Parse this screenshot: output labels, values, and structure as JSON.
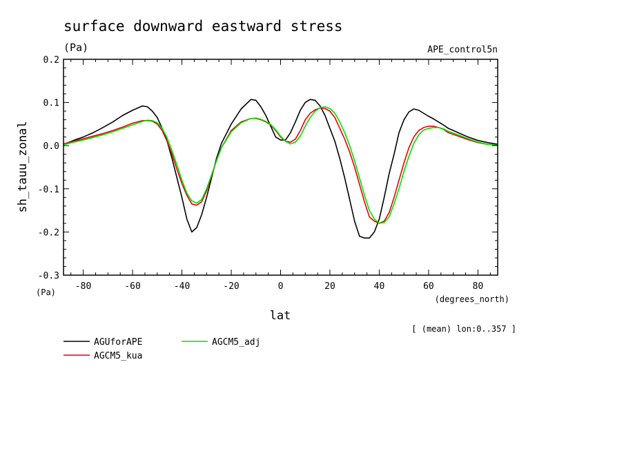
{
  "chart_data": {
    "type": "line",
    "title": "surface downward eastward stress",
    "subtitle_left": "(Pa)",
    "subtitle_right": "APE_control5n",
    "ylabel": "sh_tauu_zonal",
    "yunit": "(Pa)",
    "xlabel": "lat",
    "xunit": "(degrees_north)",
    "annotation": "[ (mean) lon:0..357 ]",
    "xlim": [
      -88,
      88
    ],
    "ylim": [
      -0.3,
      0.2
    ],
    "xticks": [
      -80,
      -60,
      -40,
      -20,
      0,
      20,
      40,
      60,
      80
    ],
    "xticklabels": [
      "-80",
      "-60",
      "-40",
      "-20",
      "0",
      "20",
      "40",
      "60",
      "80"
    ],
    "yticks": [
      -0.3,
      -0.2,
      -0.1,
      0.0,
      0.1,
      0.2
    ],
    "yticklabels": [
      "-0.3",
      "-0.2",
      "-0.1",
      "0.0",
      "0.1",
      "0.2"
    ],
    "legend_position": "bottom-left",
    "series": [
      {
        "name": "AGUforAPE",
        "color": "#000000",
        "x": [
          -88,
          -84,
          -80,
          -76,
          -72,
          -68,
          -64,
          -60,
          -56,
          -54,
          -52,
          -50,
          -48,
          -46,
          -44,
          -42,
          -40,
          -38,
          -36,
          -34,
          -32,
          -30,
          -28,
          -26,
          -24,
          -20,
          -16,
          -12,
          -10,
          -8,
          -6,
          -4,
          -2,
          0,
          2,
          4,
          6,
          8,
          10,
          12,
          14,
          16,
          18,
          20,
          22,
          24,
          26,
          28,
          30,
          32,
          34,
          36,
          38,
          40,
          42,
          44,
          46,
          48,
          50,
          52,
          54,
          56,
          58,
          60,
          62,
          64,
          66,
          68,
          72,
          76,
          80,
          84,
          88
        ],
        "y": [
          0.003,
          0.012,
          0.02,
          0.03,
          0.042,
          0.055,
          0.07,
          0.082,
          0.092,
          0.09,
          0.08,
          0.065,
          0.04,
          0.01,
          -0.03,
          -0.075,
          -0.12,
          -0.17,
          -0.2,
          -0.19,
          -0.16,
          -0.12,
          -0.075,
          -0.03,
          0.005,
          0.05,
          0.085,
          0.107,
          0.105,
          0.09,
          0.07,
          0.045,
          0.02,
          0.013,
          0.013,
          0.03,
          0.055,
          0.082,
          0.1,
          0.107,
          0.105,
          0.092,
          0.07,
          0.04,
          0.01,
          -0.03,
          -0.075,
          -0.125,
          -0.175,
          -0.21,
          -0.214,
          -0.214,
          -0.2,
          -0.17,
          -0.12,
          -0.065,
          -0.02,
          0.03,
          0.06,
          0.078,
          0.085,
          0.082,
          0.075,
          0.068,
          0.062,
          0.055,
          0.048,
          0.04,
          0.03,
          0.02,
          0.012,
          0.007,
          0.003
        ]
      },
      {
        "name": "AGCM5_kua",
        "color": "#e00000",
        "x": [
          -88,
          -84,
          -80,
          -76,
          -72,
          -68,
          -64,
          -60,
          -56,
          -54,
          -52,
          -50,
          -48,
          -46,
          -44,
          -42,
          -40,
          -38,
          -36,
          -34,
          -32,
          -30,
          -28,
          -26,
          -24,
          -20,
          -16,
          -12,
          -10,
          -8,
          -6,
          -4,
          -2,
          0,
          2,
          4,
          6,
          8,
          10,
          12,
          14,
          16,
          18,
          20,
          22,
          24,
          26,
          28,
          30,
          32,
          34,
          36,
          38,
          40,
          42,
          44,
          46,
          48,
          50,
          52,
          54,
          56,
          58,
          60,
          62,
          64,
          66,
          68,
          72,
          76,
          80,
          84,
          88
        ],
        "y": [
          0.004,
          0.01,
          0.016,
          0.022,
          0.028,
          0.035,
          0.043,
          0.052,
          0.058,
          0.058,
          0.057,
          0.05,
          0.035,
          0.01,
          -0.02,
          -0.055,
          -0.088,
          -0.115,
          -0.135,
          -0.138,
          -0.13,
          -0.105,
          -0.07,
          -0.035,
          -0.005,
          0.035,
          0.055,
          0.063,
          0.063,
          0.06,
          0.055,
          0.048,
          0.035,
          0.02,
          0.01,
          0.008,
          0.015,
          0.035,
          0.06,
          0.075,
          0.083,
          0.087,
          0.086,
          0.08,
          0.065,
          0.04,
          0.015,
          -0.015,
          -0.05,
          -0.09,
          -0.13,
          -0.165,
          -0.175,
          -0.18,
          -0.175,
          -0.155,
          -0.12,
          -0.08,
          -0.04,
          -0.005,
          0.02,
          0.035,
          0.042,
          0.045,
          0.045,
          0.042,
          0.038,
          0.03,
          0.022,
          0.014,
          0.007,
          0.003,
          0.001
        ]
      },
      {
        "name": "AGCM5_adj",
        "color": "#00dd00",
        "x": [
          -88,
          -84,
          -80,
          -76,
          -72,
          -68,
          -64,
          -60,
          -56,
          -54,
          -52,
          -50,
          -48,
          -46,
          -44,
          -42,
          -40,
          -38,
          -36,
          -34,
          -32,
          -30,
          -28,
          -26,
          -24,
          -20,
          -16,
          -12,
          -10,
          -8,
          -6,
          -4,
          -2,
          0,
          2,
          4,
          6,
          8,
          10,
          12,
          14,
          16,
          18,
          20,
          22,
          24,
          26,
          28,
          30,
          32,
          34,
          36,
          38,
          40,
          42,
          44,
          46,
          48,
          50,
          52,
          54,
          56,
          58,
          60,
          62,
          64,
          66,
          68,
          72,
          76,
          80,
          84,
          88
        ],
        "y": [
          0.002,
          0.008,
          0.013,
          0.019,
          0.025,
          0.032,
          0.04,
          0.048,
          0.056,
          0.059,
          0.058,
          0.053,
          0.04,
          0.018,
          -0.012,
          -0.045,
          -0.08,
          -0.11,
          -0.128,
          -0.133,
          -0.125,
          -0.1,
          -0.068,
          -0.035,
          -0.005,
          0.032,
          0.053,
          0.063,
          0.064,
          0.061,
          0.056,
          0.049,
          0.037,
          0.022,
          0.01,
          0.004,
          0.008,
          0.022,
          0.045,
          0.065,
          0.08,
          0.088,
          0.09,
          0.086,
          0.075,
          0.055,
          0.03,
          0.0,
          -0.035,
          -0.075,
          -0.115,
          -0.15,
          -0.17,
          -0.18,
          -0.178,
          -0.165,
          -0.135,
          -0.1,
          -0.06,
          -0.025,
          0.005,
          0.025,
          0.036,
          0.04,
          0.042,
          0.042,
          0.039,
          0.033,
          0.025,
          0.016,
          0.008,
          0.003,
          0.001
        ]
      }
    ]
  }
}
